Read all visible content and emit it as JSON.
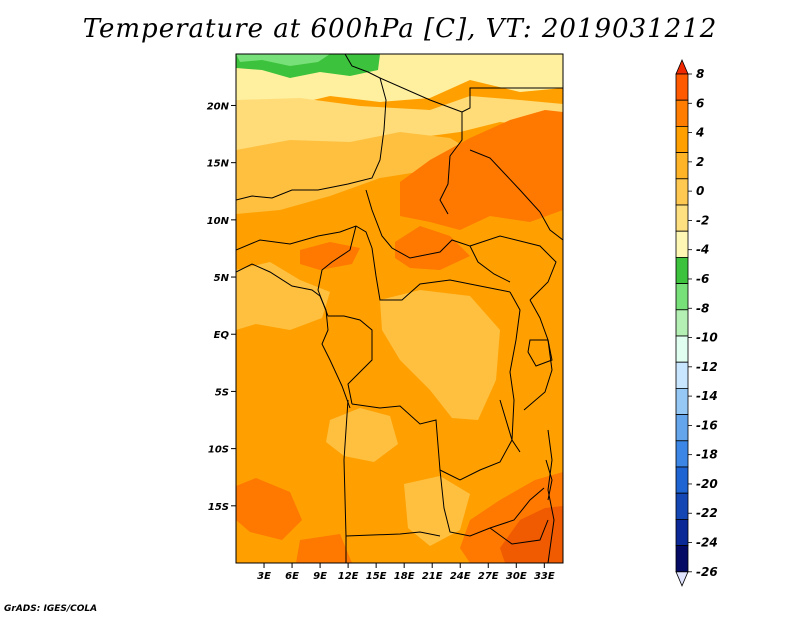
{
  "title": "Temperature at 600hPa [C], VT: 2019031212",
  "credit": "GrADS: IGES/COLA",
  "map": {
    "lat_range": [
      -20,
      24.5
    ],
    "lon_range": [
      0,
      35
    ],
    "lat_labels": [
      "20N",
      "15N",
      "10N",
      "5N",
      "EQ",
      "5S",
      "10S",
      "15S"
    ],
    "lat_values": [
      20,
      15,
      10,
      5,
      0,
      -5,
      -10,
      -15
    ],
    "lon_labels": [
      "3E",
      "6E",
      "9E",
      "12E",
      "15E",
      "18E",
      "21E",
      "24E",
      "27E",
      "30E",
      "33E"
    ],
    "lon_values": [
      3,
      6,
      9,
      12,
      15,
      18,
      21,
      24,
      27,
      30,
      33
    ],
    "field_colors": {
      "green": "#3cc23c",
      "light_green": "#78e078",
      "pale_yellow": "#fff0a0",
      "light_yellow": "#ffdc78",
      "light_orange": "#ffc040",
      "orange": "#ffa000",
      "dark_orange": "#ff7800",
      "red_orange": "#f05a00"
    }
  },
  "colorbar": {
    "labels": [
      "8",
      "6",
      "4",
      "2",
      "0",
      "-2",
      "-4",
      "-6",
      "-8",
      "-10",
      "-12",
      "-14",
      "-16",
      "-18",
      "-20",
      "-22",
      "-24",
      "-26"
    ],
    "colors": [
      "#f02800",
      "#ff5a00",
      "#ff7d00",
      "#ffa000",
      "#ffb428",
      "#ffc850",
      "#ffe080",
      "#fff8b4",
      "#3cc23c",
      "#78e078",
      "#b4f0b4",
      "#e0fff0",
      "#c8e6ff",
      "#96c8f5",
      "#64a5eb",
      "#3c87e6",
      "#1e64d2",
      "#1446b4",
      "#0a2896",
      "#050a64",
      "#e0e4ff"
    ]
  }
}
